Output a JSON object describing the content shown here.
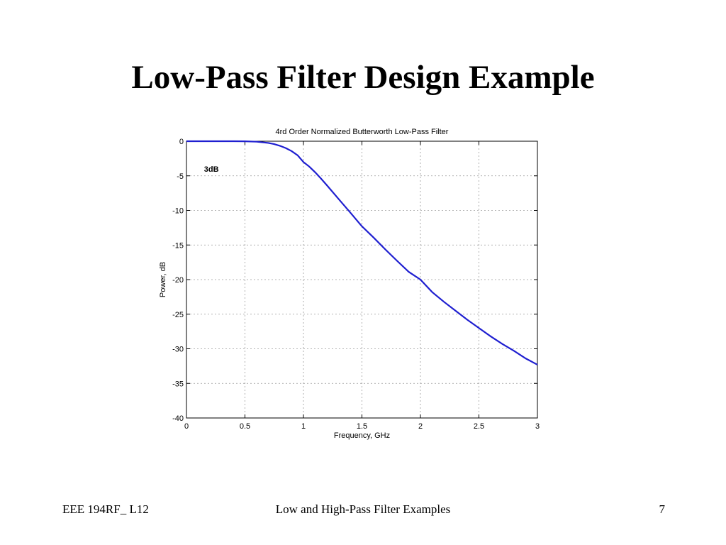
{
  "slide": {
    "title": "Low-Pass Filter Design Example",
    "footer_left": "EEE 194RF_ L12",
    "footer_center": "Low and High-Pass Filter Examples",
    "footer_right": "7"
  },
  "chart_data": {
    "type": "line",
    "title": "4rd Order Normalized Butterworth Low-Pass Filter",
    "xlabel": "Frequency, GHz",
    "ylabel": "Power, dB",
    "xlim": [
      0,
      3
    ],
    "ylim": [
      -40,
      0
    ],
    "xticks": [
      0,
      0.5,
      1,
      1.5,
      2,
      2.5,
      3
    ],
    "yticks": [
      0,
      -5,
      -10,
      -15,
      -20,
      -25,
      -30,
      -35,
      -40
    ],
    "grid": true,
    "line_color": "#1f1fd0",
    "annotations": [
      {
        "text": "3dB",
        "x": 0.15,
        "y": -4
      }
    ],
    "series": [
      {
        "x": [
          0,
          0.1,
          0.2,
          0.3,
          0.4,
          0.5,
          0.6,
          0.7,
          0.75,
          0.8,
          0.85,
          0.9,
          0.95,
          1.0,
          1.05,
          1.1,
          1.15,
          1.2,
          1.3,
          1.4,
          1.5,
          1.6,
          1.7,
          1.8,
          1.9,
          2.0,
          2.1,
          2.2,
          2.3,
          2.4,
          2.5,
          2.6,
          2.7,
          2.8,
          2.9,
          3.0
        ],
        "y": [
          0,
          0,
          0,
          -0.0005,
          -0.0028,
          -0.0169,
          -0.073,
          -0.25,
          -0.42,
          -0.67,
          -1.0,
          -1.44,
          -2.03,
          -3.01,
          -3.67,
          -4.49,
          -5.4,
          -6.36,
          -8.34,
          -10.3,
          -12.3,
          -13.93,
          -15.64,
          -17.28,
          -18.88,
          -20.0,
          -21.8,
          -23.2,
          -24.5,
          -25.8,
          -27.0,
          -28.2,
          -29.3,
          -30.3,
          -31.4,
          -32.3
        ]
      }
    ]
  }
}
